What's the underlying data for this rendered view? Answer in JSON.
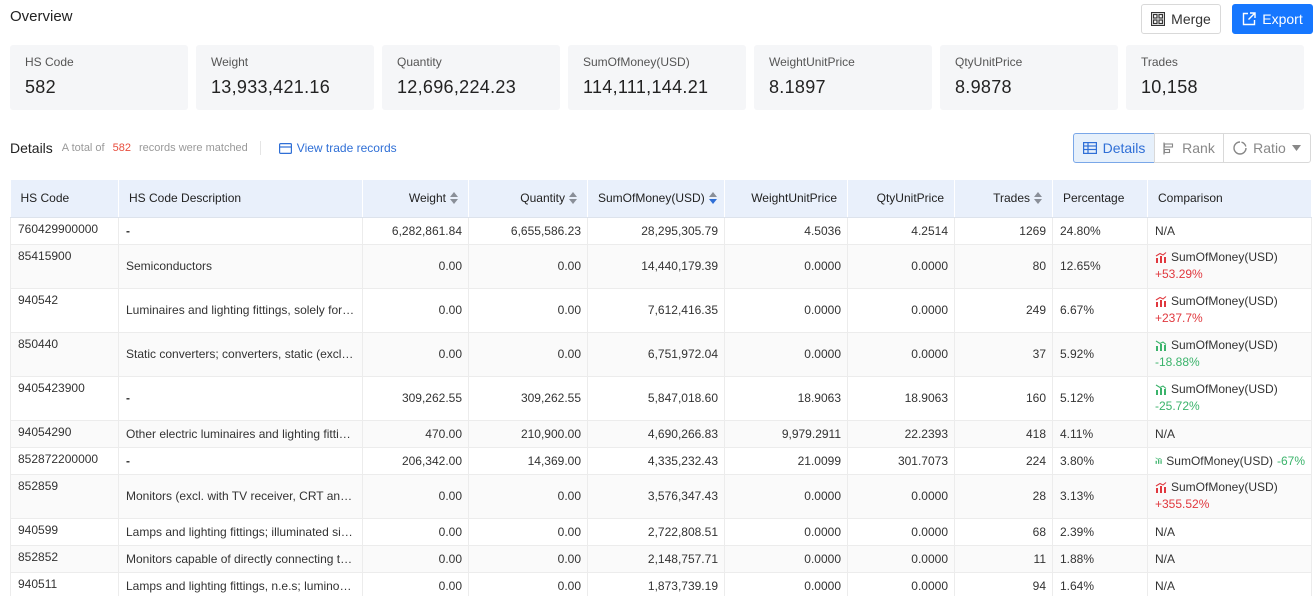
{
  "overview": {
    "title": "Overview",
    "merge_label": "Merge",
    "export_label": "Export",
    "cards": [
      {
        "label": "HS Code",
        "value": "582"
      },
      {
        "label": "Weight",
        "value": "13,933,421.16"
      },
      {
        "label": "Quantity",
        "value": "12,696,224.23"
      },
      {
        "label": "SumOfMoney(USD)",
        "value": "114,111,144.21"
      },
      {
        "label": "WeightUnitPrice",
        "value": "8.1897"
      },
      {
        "label": "QtyUnitPrice",
        "value": "8.9878"
      },
      {
        "label": "Trades",
        "value": "10,158"
      }
    ]
  },
  "details": {
    "title": "Details",
    "total_prefix": "A total of",
    "total_count": "582",
    "total_suffix": "records were matched",
    "view_link": "View trade records",
    "tabs": {
      "details": "Details",
      "rank": "Rank",
      "ratio": "Ratio"
    }
  },
  "table": {
    "headers": [
      "HS Code",
      "HS Code Description",
      "Weight",
      "Quantity",
      "SumOfMoney(USD)",
      "WeightUnitPrice",
      "QtyUnitPrice",
      "Trades",
      "Percentage",
      "Comparison"
    ],
    "rows": [
      {
        "code": "760429900000",
        "desc": "-",
        "weight": "6,282,861.84",
        "qty": "6,655,586.23",
        "sum": "28,295,305.79",
        "wup": "4.5036",
        "qup": "4.2514",
        "trades": "1269",
        "pct": "24.80%",
        "cmp": {
          "label": "N/A"
        }
      },
      {
        "code": "85415900",
        "desc": "Semiconductors",
        "weight": "0.00",
        "qty": "0.00",
        "sum": "14,440,179.39",
        "wup": "0.0000",
        "qup": "0.0000",
        "trades": "80",
        "pct": "12.65%",
        "cmp": {
          "label": "SumOfMoney(USD)",
          "change": "+53.29%",
          "dir": "up"
        }
      },
      {
        "code": "940542",
        "desc": "Luminaires and lighting fittings, solely for li...",
        "weight": "0.00",
        "qty": "0.00",
        "sum": "7,612,416.35",
        "wup": "0.0000",
        "qup": "0.0000",
        "trades": "249",
        "pct": "6.67%",
        "cmp": {
          "label": "SumOfMoney(USD)",
          "change": "+237.7%",
          "dir": "up"
        }
      },
      {
        "code": "850440",
        "desc": "Static converters; converters, static (excl. el...",
        "weight": "0.00",
        "qty": "0.00",
        "sum": "6,751,972.04",
        "wup": "0.0000",
        "qup": "0.0000",
        "trades": "37",
        "pct": "5.92%",
        "cmp": {
          "label": "SumOfMoney(USD)",
          "change": "-18.88%",
          "dir": "down"
        }
      },
      {
        "code": "9405423900",
        "desc": "-",
        "weight": "309,262.55",
        "qty": "309,262.55",
        "sum": "5,847,018.60",
        "wup": "18.9063",
        "qup": "18.9063",
        "trades": "160",
        "pct": "5.12%",
        "cmp": {
          "label": "SumOfMoney(USD)",
          "change": "-25.72%",
          "dir": "down"
        }
      },
      {
        "code": "94054290",
        "desc": "Other electric luminaires and lighting fitting...",
        "weight": "470.00",
        "qty": "210,900.00",
        "sum": "4,690,266.83",
        "wup": "9,979.2911",
        "qup": "22.2393",
        "trades": "418",
        "pct": "4.11%",
        "cmp": {
          "label": "N/A"
        }
      },
      {
        "code": "852872200000",
        "desc": "-",
        "weight": "206,342.00",
        "qty": "14,369.00",
        "sum": "4,335,232.43",
        "wup": "21.0099",
        "qup": "301.7073",
        "trades": "224",
        "pct": "3.80%",
        "cmp": {
          "label": "SumOfMoney(USD)",
          "change": "-67%",
          "dir": "down",
          "inline": true
        }
      },
      {
        "code": "852859",
        "desc": "Monitors (excl. with TV receiver, CRT and th...",
        "weight": "0.00",
        "qty": "0.00",
        "sum": "3,576,347.43",
        "wup": "0.0000",
        "qup": "0.0000",
        "trades": "28",
        "pct": "3.13%",
        "cmp": {
          "label": "SumOfMoney(USD)",
          "change": "+355.52%",
          "dir": "up"
        }
      },
      {
        "code": "940599",
        "desc": "Lamps and lighting fittings; illuminated sig...",
        "weight": "0.00",
        "qty": "0.00",
        "sum": "2,722,808.51",
        "wup": "0.0000",
        "qup": "0.0000",
        "trades": "68",
        "pct": "2.39%",
        "cmp": {
          "label": "N/A"
        }
      },
      {
        "code": "852852",
        "desc": "Monitors capable of directly connecting to ...",
        "weight": "0.00",
        "qty": "0.00",
        "sum": "2,148,757.71",
        "wup": "0.0000",
        "qup": "0.0000",
        "trades": "11",
        "pct": "1.88%",
        "cmp": {
          "label": "N/A"
        }
      },
      {
        "code": "940511",
        "desc": "Lamps and lighting fittings, n.e.s; luminous ...",
        "weight": "0.00",
        "qty": "0.00",
        "sum": "1,873,739.19",
        "wup": "0.0000",
        "qup": "0.0000",
        "trades": "94",
        "pct": "1.64%",
        "cmp": {
          "label": "N/A"
        }
      }
    ]
  },
  "colors": {
    "accent": "#1677ff",
    "up": "#e0383e",
    "down": "#3bb36b",
    "count": "#e84d3d"
  },
  "icons": {
    "merge": "merge-grid-icon",
    "export": "export-icon",
    "view": "card-icon",
    "details": "table-icon",
    "rank": "rank-icon",
    "ratio": "ratio-icon",
    "trend_up": "trend-up-icon",
    "trend_down": "trend-down-icon"
  }
}
